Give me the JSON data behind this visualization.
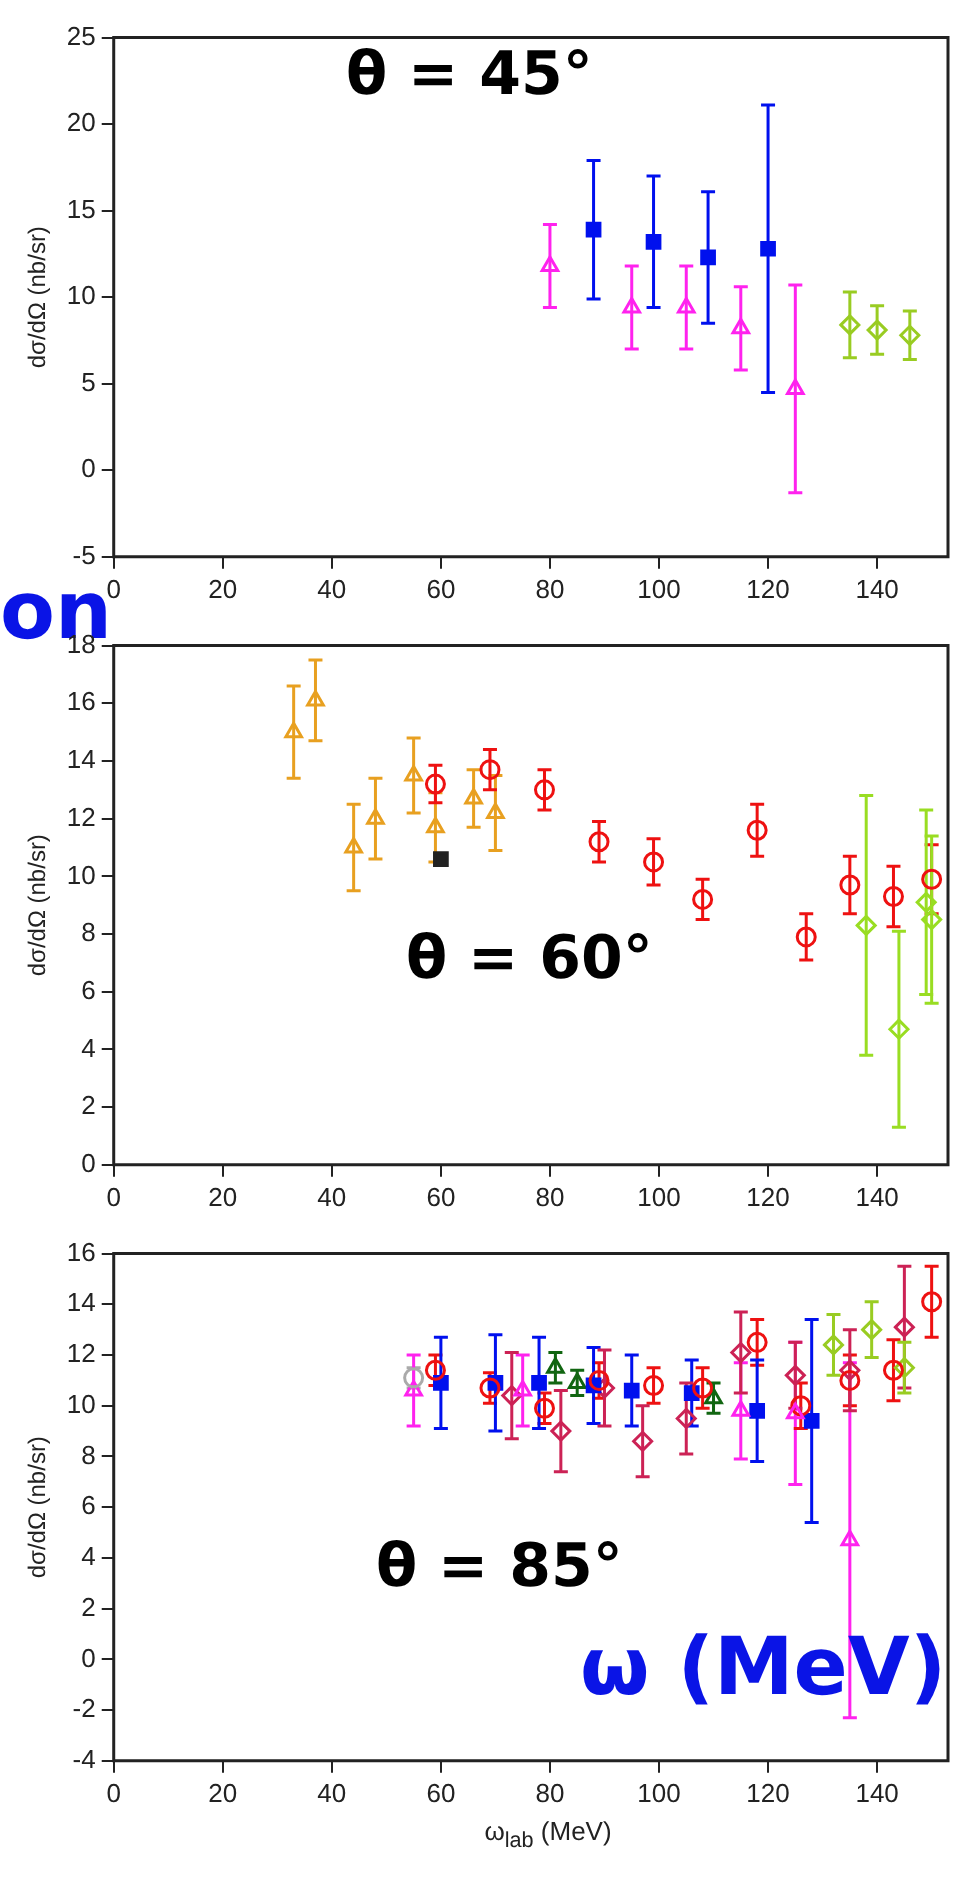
{
  "chart_data": [
    {
      "type": "scatter",
      "ylabel": "dσ/dΩ (nb/sr)",
      "xlim": [
        0,
        153
      ],
      "xticks": [
        0,
        20,
        40,
        60,
        80,
        100,
        120,
        140
      ],
      "ylim": [
        -5,
        25
      ],
      "yticks": [
        -5,
        0,
        5,
        10,
        15,
        20,
        25
      ],
      "annotations": [
        "θ = 45°",
        "on"
      ],
      "series": [
        {
          "color": "#ff22ee",
          "marker": "triangle",
          "x": [
            80,
            95,
            105,
            115,
            125
          ],
          "values": [
            11.8,
            9.4,
            9.4,
            8.2,
            4.7
          ],
          "errors": [
            2.4,
            2.4,
            2.4,
            2.4,
            6.0
          ]
        },
        {
          "color": "#0010ee",
          "marker": "square",
          "x": [
            88,
            99,
            109,
            120
          ],
          "values": [
            13.9,
            13.2,
            12.3,
            12.8
          ],
          "errors": [
            4.0,
            3.8,
            3.8,
            8.3
          ]
        },
        {
          "color": "#99cc22",
          "marker": "diamond",
          "x": [
            135,
            140,
            146
          ],
          "values": [
            8.4,
            8.1,
            7.8
          ],
          "errors": [
            1.9,
            1.4,
            1.4
          ]
        }
      ]
    },
    {
      "type": "scatter",
      "ylabel": "dσ/dΩ (nb/sr)",
      "xlim": [
        0,
        153
      ],
      "xticks": [
        0,
        20,
        40,
        60,
        80,
        100,
        120,
        140
      ],
      "ylim": [
        0,
        18
      ],
      "yticks": [
        0,
        2,
        4,
        6,
        8,
        10,
        12,
        14,
        16,
        18
      ],
      "annotations": [
        "θ = 60°"
      ],
      "series": [
        {
          "color": "#e8a020",
          "marker": "triangle",
          "x": [
            33,
            37,
            44,
            48,
            55,
            59,
            66,
            70
          ],
          "values": [
            15.0,
            16.1,
            11.0,
            12.0,
            13.5,
            11.7,
            12.7,
            12.2
          ],
          "errors": [
            1.6,
            1.4,
            1.5,
            1.4,
            1.3,
            1.2,
            1.0,
            1.3
          ]
        },
        {
          "color": "#ee1111",
          "marker": "circle",
          "x": [
            59,
            69,
            79,
            89,
            99,
            108,
            118,
            127,
            135,
            143,
            150
          ],
          "values": [
            13.2,
            13.7,
            13.0,
            11.2,
            10.5,
            9.2,
            11.6,
            7.9,
            9.7,
            9.3,
            9.9
          ],
          "errors": [
            0.65,
            0.7,
            0.7,
            0.7,
            0.8,
            0.7,
            0.9,
            0.8,
            1.0,
            1.05,
            1.2
          ]
        },
        {
          "color": "#99dd22",
          "marker": "diamond",
          "x": [
            138,
            144,
            149,
            150
          ],
          "values": [
            8.3,
            4.7,
            9.1,
            8.5
          ],
          "errors": [
            4.5,
            3.4,
            3.2,
            2.9
          ]
        },
        {
          "color": "#222222",
          "marker": "square",
          "x": [
            60
          ],
          "values": [
            10.6
          ]
        }
      ]
    },
    {
      "type": "scatter",
      "xlabel": "ω$_{lab}$ (MeV)",
      "ylabel": "dσ/dΩ (nb/sr)",
      "xlim": [
        0,
        153
      ],
      "xticks": [
        0,
        20,
        40,
        60,
        80,
        100,
        120,
        140
      ],
      "ylim": [
        -4,
        16
      ],
      "yticks": [
        -4,
        -2,
        0,
        2,
        4,
        6,
        8,
        10,
        12,
        14,
        16
      ],
      "annotations": [
        "θ = 85°",
        "ω (MeV)"
      ],
      "series": [
        {
          "color": "#aaaaaa",
          "marker": "circle",
          "x": [
            55
          ],
          "values": [
            11.1
          ],
          "errors": [
            0.4
          ]
        },
        {
          "color": "#ff22ee",
          "marker": "triangle",
          "x": [
            55,
            75,
            115,
            125,
            135
          ],
          "values": [
            10.6,
            10.6,
            9.8,
            9.7,
            4.7
          ],
          "errors": [
            1.4,
            1.4,
            1.9,
            2.8,
            7.0
          ]
        },
        {
          "color": "#ee1111",
          "marker": "circle",
          "x": [
            59,
            69,
            79,
            89,
            99,
            108,
            118,
            126,
            135,
            143,
            150
          ],
          "values": [
            11.4,
            10.7,
            9.9,
            11.0,
            10.8,
            10.7,
            12.5,
            10.0,
            11.0,
            11.4,
            14.1
          ],
          "errors": [
            0.6,
            0.6,
            0.6,
            0.7,
            0.7,
            0.8,
            0.9,
            0.9,
            1.0,
            1.2,
            1.4
          ]
        },
        {
          "color": "#0010ee",
          "marker": "square",
          "x": [
            60,
            70,
            78,
            88,
            95,
            106,
            118,
            128
          ],
          "values": [
            10.9,
            10.9,
            10.9,
            10.8,
            10.6,
            10.5,
            9.8,
            9.4
          ],
          "errors": [
            1.8,
            1.9,
            1.8,
            1.5,
            1.4,
            1.3,
            2.0,
            4.0
          ]
        },
        {
          "color": "#cc2255",
          "marker": "diamond",
          "x": [
            73,
            82,
            90,
            97,
            105,
            115,
            125,
            135,
            145
          ],
          "values": [
            10.4,
            9.0,
            10.7,
            8.6,
            9.5,
            12.1,
            11.2,
            11.4,
            13.1
          ],
          "errors": [
            1.7,
            1.6,
            1.5,
            1.4,
            1.4,
            1.6,
            1.3,
            1.6,
            2.4
          ]
        },
        {
          "color": "#99cc22",
          "marker": "diamond",
          "x": [
            132,
            139,
            145
          ],
          "values": [
            12.4,
            13.0,
            11.5
          ],
          "errors": [
            1.2,
            1.1,
            1.0
          ]
        },
        {
          "color": "#116611",
          "marker": "triangle",
          "x": [
            81,
            85,
            110
          ],
          "values": [
            11.5,
            10.9,
            10.3
          ],
          "errors": [
            0.6,
            0.5,
            0.6
          ]
        }
      ]
    }
  ]
}
